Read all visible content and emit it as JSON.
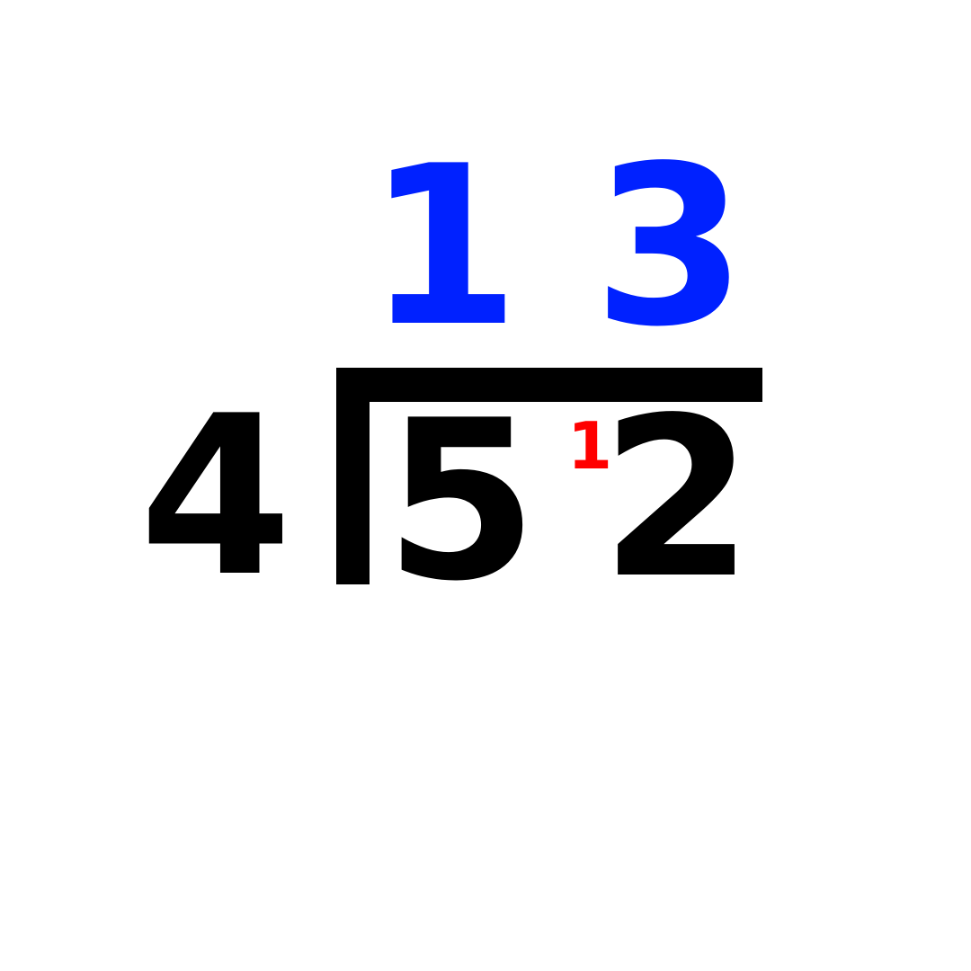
{
  "problem": {
    "divisor": "4",
    "dividend_digits": [
      "5",
      "2"
    ],
    "quotient_digits": [
      "1",
      "3"
    ],
    "carry": "1"
  },
  "colors": {
    "quotient": "#0021ff",
    "numbers": "#000000",
    "carry": "#ff0000",
    "background": "#ffffff"
  }
}
